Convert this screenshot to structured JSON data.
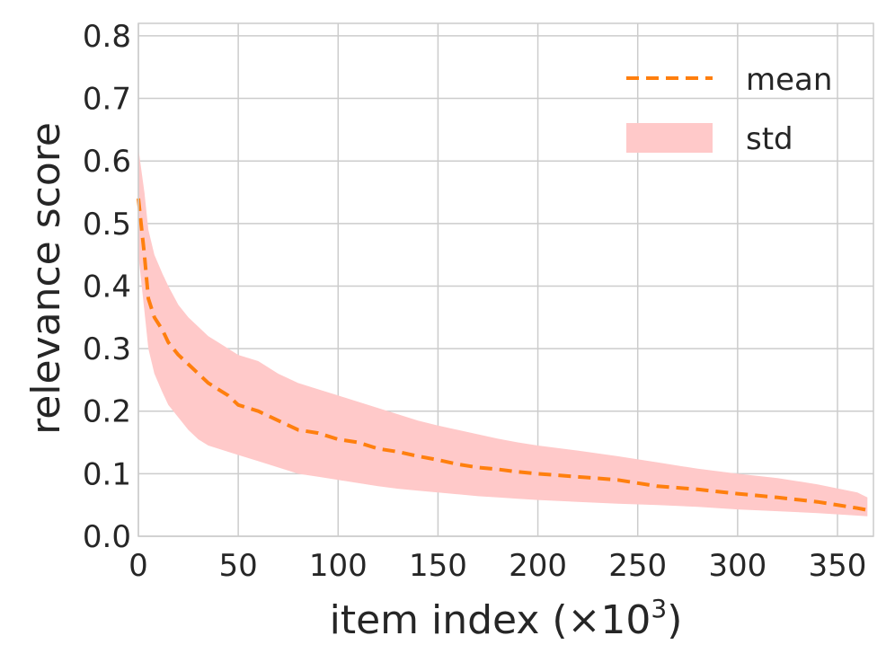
{
  "chart_data": {
    "type": "line",
    "xlabel": "item index (×10",
    "xlabel_sup": "3",
    "xlabel_close": ")",
    "ylabel": "relevance score",
    "xlim": [
      0,
      368
    ],
    "ylim": [
      0.0,
      0.82
    ],
    "x_ticks": [
      "0",
      "50",
      "100",
      "150",
      "200",
      "250",
      "300",
      "350"
    ],
    "y_ticks": [
      "0.0",
      "0.1",
      "0.2",
      "0.3",
      "0.4",
      "0.5",
      "0.6",
      "0.7",
      "0.8"
    ],
    "grid": true,
    "legend_position": "top-right",
    "series": [
      {
        "name": "mean",
        "style": "dashed",
        "color": "#ff7f0e",
        "x": [
          0,
          3,
          5,
          8,
          12,
          15,
          20,
          25,
          30,
          35,
          40,
          45,
          50,
          60,
          70,
          80,
          90,
          100,
          110,
          120,
          130,
          140,
          150,
          160,
          170,
          180,
          190,
          200,
          220,
          240,
          260,
          280,
          300,
          320,
          340,
          360,
          365
        ],
        "y": [
          0.54,
          0.45,
          0.38,
          0.35,
          0.33,
          0.31,
          0.29,
          0.275,
          0.26,
          0.245,
          0.235,
          0.225,
          0.21,
          0.2,
          0.185,
          0.17,
          0.165,
          0.155,
          0.15,
          0.14,
          0.135,
          0.128,
          0.122,
          0.115,
          0.11,
          0.107,
          0.103,
          0.1,
          0.095,
          0.09,
          0.08,
          0.075,
          0.068,
          0.062,
          0.055,
          0.045,
          0.042
        ]
      },
      {
        "name": "std",
        "type": "band",
        "color": "#ffc9c9",
        "x": [
          0,
          3,
          5,
          8,
          12,
          15,
          20,
          25,
          30,
          35,
          40,
          45,
          50,
          60,
          70,
          80,
          90,
          100,
          110,
          120,
          130,
          140,
          150,
          160,
          170,
          180,
          190,
          200,
          220,
          240,
          260,
          280,
          300,
          320,
          340,
          360,
          365
        ],
        "lower": [
          0.45,
          0.36,
          0.3,
          0.26,
          0.23,
          0.21,
          0.19,
          0.17,
          0.155,
          0.145,
          0.14,
          0.135,
          0.13,
          0.12,
          0.11,
          0.1,
          0.095,
          0.09,
          0.085,
          0.08,
          0.076,
          0.073,
          0.07,
          0.067,
          0.064,
          0.062,
          0.06,
          0.058,
          0.055,
          0.052,
          0.05,
          0.047,
          0.043,
          0.04,
          0.037,
          0.033,
          0.032
        ],
        "upper": [
          0.62,
          0.55,
          0.49,
          0.45,
          0.42,
          0.4,
          0.37,
          0.35,
          0.335,
          0.32,
          0.31,
          0.3,
          0.29,
          0.28,
          0.26,
          0.245,
          0.235,
          0.225,
          0.215,
          0.205,
          0.195,
          0.185,
          0.177,
          0.17,
          0.163,
          0.156,
          0.15,
          0.145,
          0.137,
          0.128,
          0.118,
          0.108,
          0.1,
          0.093,
          0.083,
          0.07,
          0.062
        ]
      }
    ]
  }
}
